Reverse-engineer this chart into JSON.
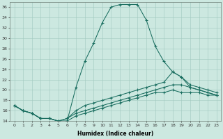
{
  "xlabel": "Humidex (Indice chaleur)",
  "ylabel": "",
  "background_color": "#cce8e0",
  "grid_color": "#a0c8be",
  "line_color": "#1a6e60",
  "xlim": [
    -0.5,
    23.5
  ],
  "ylim": [
    14,
    37
  ],
  "yticks": [
    14,
    16,
    18,
    20,
    22,
    24,
    26,
    28,
    30,
    32,
    34,
    36
  ],
  "xticks": [
    0,
    1,
    2,
    3,
    4,
    5,
    6,
    7,
    8,
    9,
    10,
    11,
    12,
    13,
    14,
    15,
    16,
    17,
    18,
    19,
    20,
    21,
    22,
    23
  ],
  "series": [
    {
      "x": [
        0,
        1,
        2,
        3,
        4,
        5,
        6,
        7,
        8,
        9,
        10,
        11,
        12,
        13,
        14,
        15,
        16,
        17,
        18,
        19,
        20,
        21,
        22,
        23
      ],
      "y": [
        17,
        16,
        15.5,
        14.5,
        14.5,
        14,
        14,
        20.5,
        25.5,
        29,
        33,
        36,
        36.5,
        36.5,
        36.5,
        33.5,
        28.5,
        25.5,
        23.5,
        22.5,
        21,
        20.5,
        20,
        19.5
      ]
    },
    {
      "x": [
        0,
        1,
        2,
        3,
        4,
        5,
        6,
        7,
        8,
        9,
        10,
        11,
        12,
        13,
        14,
        15,
        16,
        17,
        18,
        19,
        20,
        21,
        22,
        23
      ],
      "y": [
        17,
        16,
        15.5,
        14.5,
        14.5,
        14,
        14.5,
        16,
        17,
        17.5,
        18,
        18.5,
        19,
        19.5,
        20,
        20.5,
        21,
        21.5,
        23.5,
        22.5,
        20.5,
        20,
        19.5,
        19
      ]
    },
    {
      "x": [
        0,
        1,
        2,
        3,
        4,
        5,
        6,
        7,
        8,
        9,
        10,
        11,
        12,
        13,
        14,
        15,
        16,
        17,
        18,
        19,
        20,
        21,
        22,
        23
      ],
      "y": [
        17,
        16,
        15.5,
        14.5,
        14.5,
        14,
        14.5,
        15.5,
        16,
        16.5,
        17,
        17.5,
        18,
        18.5,
        19,
        19.5,
        20,
        20.5,
        21,
        21,
        20.5,
        20,
        19.5,
        19
      ]
    },
    {
      "x": [
        0,
        1,
        2,
        3,
        4,
        5,
        6,
        7,
        8,
        9,
        10,
        11,
        12,
        13,
        14,
        15,
        16,
        17,
        18,
        19,
        20,
        21,
        22,
        23
      ],
      "y": [
        17,
        16,
        15.5,
        14.5,
        14.5,
        14,
        14,
        15,
        15.5,
        16,
        16.5,
        17,
        17.5,
        18,
        18.5,
        19,
        19.5,
        19.5,
        20,
        19.5,
        19.5,
        19.5,
        19,
        19
      ]
    }
  ]
}
